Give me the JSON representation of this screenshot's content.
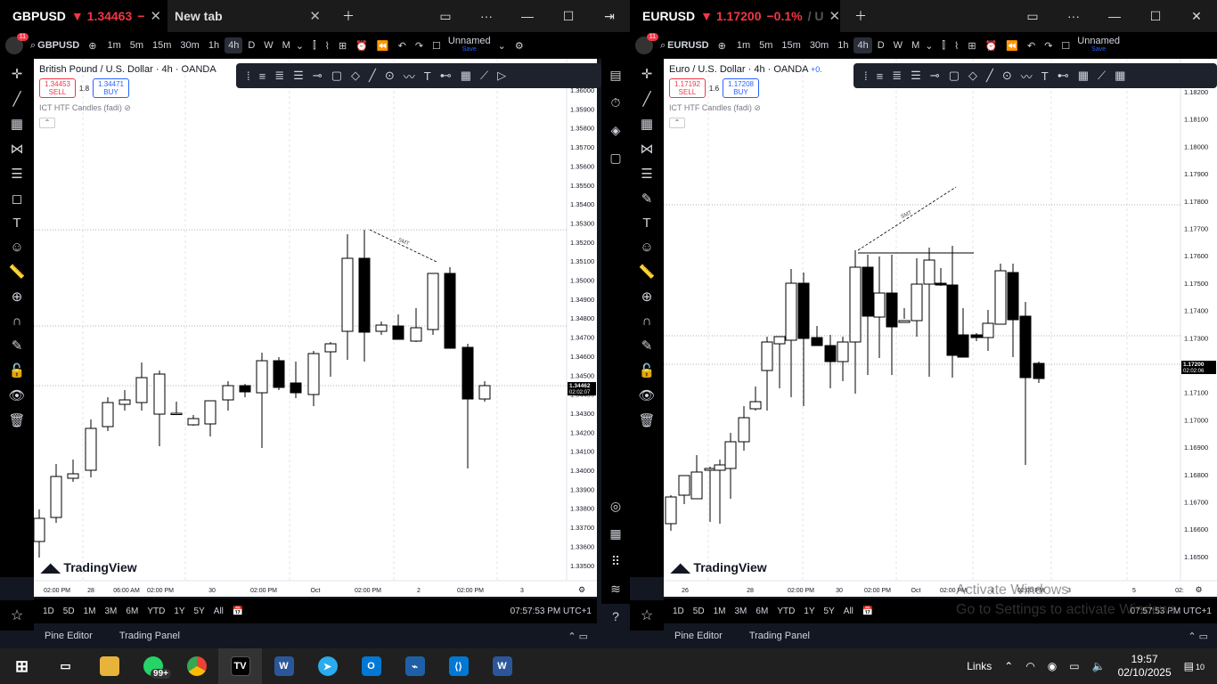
{
  "left": {
    "tab_symbol": "GBPUSD",
    "tab_price": "▼ 1.34463",
    "tab_change": "−",
    "tab2_label": "New tab",
    "symbol": "GBPUSD",
    "timeframes": [
      "1m",
      "5m",
      "15m",
      "30m",
      "1h",
      "4h",
      "D",
      "W",
      "M"
    ],
    "selected_timeframe": "4h",
    "notif_count": "11",
    "layout_name": "Unnamed",
    "layout_status": "Save",
    "title": "British Pound / U.S. Dollar · 4h · OANDA",
    "sell_price": "1.34453",
    "sell_label": "SELL",
    "spread": "1.8",
    "buy_price": "1.34471",
    "buy_label": "BUY",
    "indicator": "ICT HTF Candles (fadi)",
    "price_ticks": [
      "1.36000",
      "1.35900",
      "1.35800",
      "1.35700",
      "1.35600",
      "1.35500",
      "1.35400",
      "1.35300",
      "1.35200",
      "1.35100",
      "1.35000",
      "1.34900",
      "1.34800",
      "1.34700",
      "1.34600",
      "1.34500",
      "1.34400",
      "1.34300",
      "1.34200",
      "1.34100",
      "1.34000",
      "1.33900",
      "1.33800",
      "1.33700",
      "1.33600",
      "1.33500"
    ],
    "last_price": "1.34462",
    "countdown": "02:02:07",
    "time_ticks": [
      "02:00 PM",
      "28",
      "06:00 AM",
      "02:00 PM",
      "30",
      "02:00 PM",
      "Oct",
      "02:00 PM",
      "2",
      "02:00 PM",
      "3"
    ],
    "smt_label": "SMT",
    "ranges": [
      "1D",
      "5D",
      "1M",
      "3M",
      "6M",
      "YTD",
      "1Y",
      "5Y",
      "All"
    ],
    "clock": "07:57:53 PM UTC+1",
    "pine_editor": "Pine Editor",
    "trading_panel": "Trading Panel",
    "logo": "TradingView"
  },
  "right": {
    "tab_symbol": "EURUSD",
    "tab_price": "▼ 1.17200",
    "tab_change": "−0.1%",
    "tab_suffix": "/ U",
    "symbol": "EURUSD",
    "timeframes": [
      "1m",
      "5m",
      "15m",
      "30m",
      "1h",
      "4h",
      "D",
      "W",
      "M"
    ],
    "selected_timeframe": "4h",
    "notif_count": "11",
    "layout_name": "Unnamed",
    "layout_status": "Save",
    "title": "Euro / U.S. Dollar · 4h · OANDA",
    "title_change": "+0.",
    "sell_price": "1.17192",
    "sell_label": "SELL",
    "spread": "1.6",
    "buy_price": "1.17208",
    "buy_label": "BUY",
    "indicator": "ICT HTF Candles (fadi)",
    "price_ticks": [
      "1.18200",
      "1.18100",
      "1.18000",
      "1.17900",
      "1.17800",
      "1.17700",
      "1.17600",
      "1.17500",
      "1.17400",
      "1.17300",
      "1.17200",
      "1.17100",
      "1.17000",
      "1.16900",
      "1.16800",
      "1.16700",
      "1.16600",
      "1.16500"
    ],
    "last_price": "1.17200",
    "countdown": "02:02:06",
    "time_ticks": [
      "26",
      "28",
      "02:00 PM",
      "30",
      "02:00 PM",
      "Oct",
      "02:00 PM",
      "2",
      "02:00 PM",
      "3",
      "5",
      "02:"
    ],
    "smt_label": "SMT",
    "ranges": [
      "1D",
      "5D",
      "1M",
      "3M",
      "6M",
      "YTD",
      "1Y",
      "5Y",
      "All"
    ],
    "clock": "07:57:53 PM UTC+1",
    "pine_editor": "Pine Editor",
    "trading_panel": "Trading Panel",
    "logo": "TradingView",
    "watermark_line1": "Activate Windows",
    "watermark_line2": "Go to Settings to activate Windows."
  },
  "taskbar": {
    "whatsapp_badge": "99+",
    "links_label": "Links",
    "time": "19:57",
    "date": "02/10/2025",
    "notif_count": "10"
  },
  "colors": {
    "bg": "#131722",
    "accent": "#2962ff",
    "down": "#f23645",
    "candle_up": "#ffffff",
    "candle_down": "#000000"
  }
}
